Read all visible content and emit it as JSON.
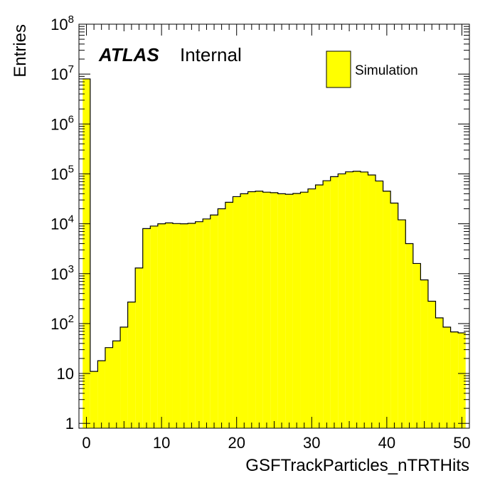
{
  "chart_data": {
    "type": "bar",
    "histogram": true,
    "xlabel": "GSFTrackParticles_nTRTHits",
    "ylabel": "Entries",
    "xlim": [
      -1,
      51
    ],
    "ylim": [
      0.8,
      100000000
    ],
    "yscale": "log",
    "grid": false,
    "legend_position": "top-right",
    "bin_width": 1,
    "bin_start": -0.5,
    "values": [
      8000000,
      11,
      18,
      33,
      45,
      85,
      270,
      1300,
      8000,
      9000,
      10000,
      10400,
      10100,
      10000,
      10200,
      11000,
      12500,
      15000,
      20000,
      27000,
      35000,
      40000,
      44000,
      45000,
      43000,
      42000,
      40000,
      39000,
      40500,
      43000,
      50000,
      60000,
      73000,
      88000,
      100000,
      110000,
      113000,
      109000,
      95000,
      72000,
      45000,
      26000,
      12000,
      4000,
      1600,
      750,
      280,
      130,
      85,
      68,
      65
    ],
    "series": [
      {
        "name": "Simulation",
        "color": "#ffff00",
        "edge_color": "#000000"
      }
    ],
    "x_ticks": [
      "0",
      "10",
      "20",
      "30",
      "40",
      "50"
    ],
    "y_ticks": [
      {
        "base": "1",
        "exp": ""
      },
      {
        "base": "10",
        "exp": ""
      },
      {
        "base": "10",
        "exp": "2"
      },
      {
        "base": "10",
        "exp": "3"
      },
      {
        "base": "10",
        "exp": "4"
      },
      {
        "base": "10",
        "exp": "5"
      },
      {
        "base": "10",
        "exp": "6"
      },
      {
        "base": "10",
        "exp": "7"
      },
      {
        "base": "10",
        "exp": "8"
      }
    ],
    "annotations": {
      "experiment": "ATLAS",
      "status": "Internal"
    }
  }
}
